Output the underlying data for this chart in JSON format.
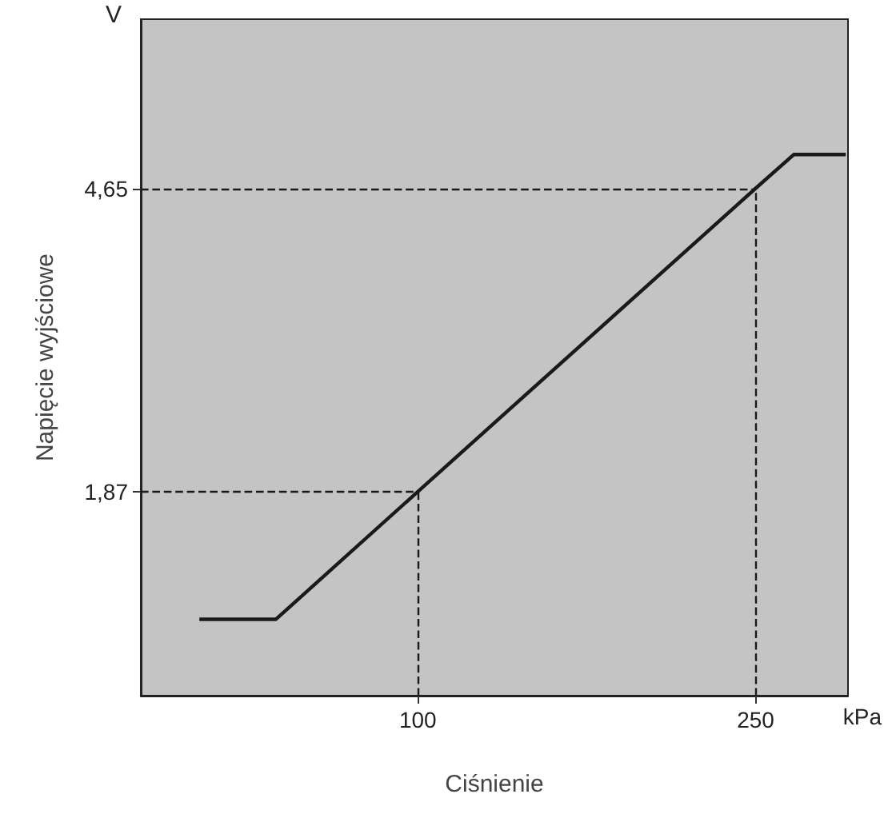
{
  "chart_data": {
    "type": "line",
    "xlabel": "Ciśnienie",
    "ylabel": "Napięcie wyjściowe",
    "annotations": [
      "V",
      "kPa"
    ],
    "x": [
      3,
      37,
      100,
      250,
      267,
      290
    ],
    "series": [
      {
        "color": "#1a1a1a",
        "values": [
          0.7,
          0.7,
          1.87,
          4.65,
          4.96,
          4.96
        ]
      }
    ],
    "xlim": [
      -23,
      291
    ],
    "ylim": [
      0,
      6.2
    ],
    "xticks": [
      100,
      250
    ],
    "yticks": [
      {
        "value": 1.87,
        "label": "1,87"
      },
      {
        "value": 4.65,
        "label": "4,65"
      }
    ],
    "ref_lines": [
      {
        "axis": "x",
        "value": 100,
        "color": "#1a1a1a",
        "line_style": "dashed"
      },
      {
        "axis": "x",
        "value": 250,
        "color": "#1a1a1a",
        "line_style": "dashed"
      },
      {
        "axis": "y",
        "value": 1.87,
        "color": "#1a1a1a",
        "line_style": "dashed"
      },
      {
        "axis": "y",
        "value": 4.65,
        "color": "#1a1a1a",
        "line_style": "dashed"
      }
    ],
    "grid": false,
    "marker": "none",
    "line_style": "solid"
  }
}
